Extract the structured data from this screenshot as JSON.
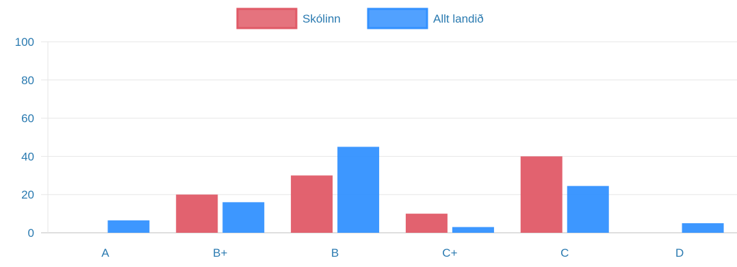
{
  "chart_data": {
    "type": "bar",
    "title": "",
    "xlabel": "",
    "ylabel": "",
    "categories": [
      "A",
      "B+",
      "B",
      "C+",
      "C",
      "D"
    ],
    "series": [
      {
        "name": "Skólinn",
        "values": [
          0,
          20,
          30,
          10,
          40,
          0
        ],
        "color": "#e05a67"
      },
      {
        "name": "Allt landið",
        "values": [
          6.5,
          16,
          45,
          3,
          24.5,
          5
        ],
        "color": "#3391ff"
      }
    ],
    "ylim": [
      0,
      100
    ],
    "yticks": [
      0,
      20,
      40,
      60,
      80,
      100
    ],
    "grid": true,
    "legend_position": "top-center",
    "tick_label_color": "#2a7ab0"
  }
}
